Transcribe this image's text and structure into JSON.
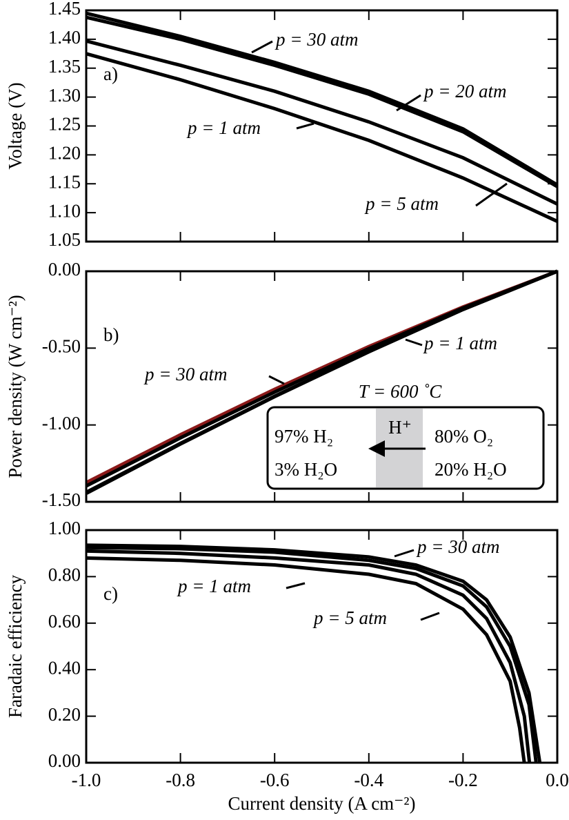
{
  "chart_data": [
    {
      "type": "line",
      "panel_label": "a)",
      "ylabel": "Voltage (V)",
      "xlim": [
        -1,
        0
      ],
      "ylim": [
        1.05,
        1.45
      ],
      "yticks": [
        1.05,
        {
          "value": 1.1,
          "label": "1.10"
        },
        1.15,
        {
          "value": 1.2,
          "label": "1.20"
        },
        1.25,
        {
          "value": 1.3,
          "label": "1.30"
        },
        1.35,
        {
          "value": 1.4,
          "label": "1.40"
        },
        1.45
      ],
      "x": [
        -1,
        -0.8,
        -0.6,
        -0.4,
        -0.2,
        0
      ],
      "series": [
        {
          "name": "p = 1 atm",
          "color": "#000000",
          "values": [
            1.375,
            1.33,
            1.28,
            1.225,
            1.16,
            1.085
          ]
        },
        {
          "name": "p = 5 atm",
          "color": "#000000",
          "values": [
            1.397,
            1.355,
            1.31,
            1.257,
            1.195,
            1.115
          ]
        },
        {
          "name": "p = 20 atm",
          "color": "#000000",
          "values": [
            1.438,
            1.4,
            1.355,
            1.305,
            1.24,
            1.145
          ]
        },
        {
          "name": "p = 30 atm",
          "color": "#000000",
          "values": [
            1.445,
            1.405,
            1.36,
            1.31,
            1.245,
            1.148
          ]
        }
      ]
    },
    {
      "type": "line",
      "panel_label": "b)",
      "ylabel": "Power density (W cm⁻²)",
      "xlim": [
        -1,
        0
      ],
      "ylim": [
        -1.5,
        0
      ],
      "yticks": [
        {
          "value": -1.5,
          "label": "-1.50"
        },
        {
          "value": -1,
          "label": "-1.00"
        },
        {
          "value": -0.5,
          "label": "-0.50"
        },
        {
          "value": 0,
          "label": "0.00"
        }
      ],
      "x": [
        -1,
        -0.8,
        -0.6,
        -0.4,
        -0.2,
        0
      ],
      "series": [
        {
          "name": "p = 1 atm",
          "color": "#8b1a1a",
          "values": [
            -1.375,
            -1.064,
            -0.768,
            -0.49,
            -0.232,
            0
          ]
        },
        {
          "color": "#000000",
          "values": [
            -1.397,
            -1.084,
            -0.786,
            -0.503,
            -0.239,
            0
          ]
        },
        {
          "color": "#000000",
          "values": [
            -1.438,
            -1.12,
            -0.813,
            -0.522,
            -0.248,
            0
          ]
        },
        {
          "name": "p = 30 atm",
          "color": "#000000",
          "values": [
            -1.445,
            -1.124,
            -0.816,
            -0.524,
            -0.249,
            0
          ]
        }
      ],
      "inset": {
        "title": "T = 600 ˚C",
        "ion": "H⁺",
        "anode": [
          "97% H₂",
          "3% H₂O"
        ],
        "cathode": [
          "80% O₂",
          "20% H₂O"
        ]
      }
    },
    {
      "type": "line",
      "panel_label": "c)",
      "ylabel": "Faradaic efficiency",
      "xlabel": "Current density (A cm⁻²)",
      "xlim": [
        -1,
        0
      ],
      "ylim": [
        0,
        1
      ],
      "xticks": [
        {
          "value": -1,
          "label": "-1.0"
        },
        -0.8,
        -0.6,
        -0.4,
        -0.2,
        {
          "value": 0,
          "label": "0.0"
        }
      ],
      "yticks": [
        {
          "value": 0,
          "label": "0.00"
        },
        {
          "value": 0.2,
          "label": "0.20"
        },
        {
          "value": 0.4,
          "label": "0.40"
        },
        {
          "value": 0.6,
          "label": "0.60"
        },
        {
          "value": 0.8,
          "label": "0.80"
        },
        {
          "value": 1,
          "label": "1.00"
        }
      ],
      "series": [
        {
          "name": "p = 1 atm",
          "color": "#000000",
          "x": [
            -1,
            -0.8,
            -0.6,
            -0.4,
            -0.3,
            -0.2,
            -0.15,
            -0.1,
            -0.08,
            -0.07
          ],
          "values": [
            0.88,
            0.87,
            0.85,
            0.81,
            0.77,
            0.66,
            0.55,
            0.35,
            0.15,
            0
          ]
        },
        {
          "name": "p = 5 atm",
          "color": "#000000",
          "x": [
            -1,
            -0.8,
            -0.6,
            -0.4,
            -0.3,
            -0.2,
            -0.15,
            -0.1,
            -0.07,
            -0.059
          ],
          "values": [
            0.91,
            0.9,
            0.88,
            0.85,
            0.81,
            0.72,
            0.62,
            0.43,
            0.2,
            0
          ]
        },
        {
          "color": "#000000",
          "x": [
            -1,
            -0.8,
            -0.6,
            -0.4,
            -0.3,
            -0.2,
            -0.15,
            -0.1,
            -0.06,
            -0.045
          ],
          "values": [
            0.925,
            0.92,
            0.905,
            0.87,
            0.835,
            0.76,
            0.67,
            0.5,
            0.25,
            0
          ]
        },
        {
          "name": "p = 30 atm",
          "color": "#000000",
          "x": [
            -1,
            -0.8,
            -0.6,
            -0.4,
            -0.3,
            -0.2,
            -0.15,
            -0.1,
            -0.06,
            -0.037
          ],
          "values": [
            0.935,
            0.93,
            0.915,
            0.885,
            0.85,
            0.78,
            0.7,
            0.54,
            0.3,
            0
          ]
        }
      ]
    }
  ]
}
